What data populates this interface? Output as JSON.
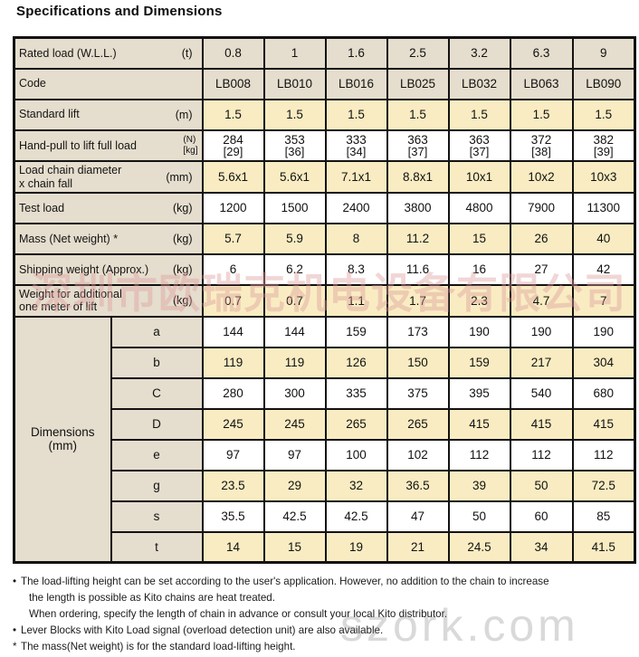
{
  "title": "Specifications and Dimensions",
  "colors": {
    "label_background": "#e5ddcd",
    "highlight_row_background": "#f9ecc2",
    "plain_row_background": "#ffffff",
    "border": "#121212",
    "watermark_chinese": "#de9e9e",
    "watermark_url": "#8c8c8c"
  },
  "table": {
    "spec_rows": [
      {
        "label": "Rated load (W.L.L.)",
        "label2": "",
        "unit": "(t)",
        "unit2": "",
        "shade": "beige",
        "values": [
          "0.8",
          "1",
          "1.6",
          "2.5",
          "3.2",
          "6.3",
          "9"
        ],
        "values2": []
      },
      {
        "label": "Code",
        "label2": "",
        "unit": "",
        "unit2": "",
        "shade": "beige",
        "values": [
          "LB008",
          "LB010",
          "LB016",
          "LB025",
          "LB032",
          "LB063",
          "LB090"
        ],
        "values2": []
      },
      {
        "label": "Standard lift",
        "label2": "",
        "unit": "(m)",
        "unit2": "",
        "shade": "yellow",
        "values": [
          "1.5",
          "1.5",
          "1.5",
          "1.5",
          "1.5",
          "1.5",
          "1.5"
        ],
        "values2": []
      },
      {
        "label": "Hand-pull to lift full load",
        "label2": "",
        "unit": "(N)",
        "unit2": "[kg]",
        "shade": "white",
        "values": [
          "284",
          "353",
          "333",
          "363",
          "363",
          "372",
          "382"
        ],
        "values2": [
          "[29]",
          "[36]",
          "[34]",
          "[37]",
          "[37]",
          "[38]",
          "[39]"
        ]
      },
      {
        "label": "Load chain diameter",
        "label2": "x chain fall",
        "unit": "(mm)",
        "unit2": "",
        "shade": "yellow",
        "values": [
          "5.6x1",
          "5.6x1",
          "7.1x1",
          "8.8x1",
          "10x1",
          "10x2",
          "10x3"
        ],
        "values2": []
      },
      {
        "label": "Test load",
        "label2": "",
        "unit": "(kg)",
        "unit2": "",
        "shade": "white",
        "values": [
          "1200",
          "1500",
          "2400",
          "3800",
          "4800",
          "7900",
          "11300"
        ],
        "values2": []
      },
      {
        "label": "Mass (Net weight) *",
        "label2": "",
        "unit": "(kg)",
        "unit2": "",
        "shade": "yellow",
        "values": [
          "5.7",
          "5.9",
          "8",
          "11.2",
          "15",
          "26",
          "40"
        ],
        "values2": []
      },
      {
        "label": "Shipping weight (Approx.)",
        "label2": "",
        "unit": "(kg)",
        "unit2": "",
        "shade": "white",
        "values": [
          "6",
          "6.2",
          "8.3",
          "11.6",
          "16",
          "27",
          "42"
        ],
        "values2": []
      },
      {
        "label": "Weight for additional",
        "label2": "one meter of lift",
        "unit": "(kg)",
        "unit2": "",
        "shade": "yellow",
        "values": [
          "0.7",
          "0.7",
          "1.1",
          "1.7",
          "2.3",
          "4.7",
          "7"
        ],
        "values2": []
      }
    ],
    "dimensions_label": "Dimensions",
    "dimensions_unit": "(mm)",
    "dimension_rows": [
      {
        "key": "a",
        "shade": "white",
        "values": [
          "144",
          "144",
          "159",
          "173",
          "190",
          "190",
          "190"
        ]
      },
      {
        "key": "b",
        "shade": "yellow",
        "values": [
          "119",
          "119",
          "126",
          "150",
          "159",
          "217",
          "304"
        ]
      },
      {
        "key": "C",
        "shade": "white",
        "values": [
          "280",
          "300",
          "335",
          "375",
          "395",
          "540",
          "680"
        ]
      },
      {
        "key": "D",
        "shade": "yellow",
        "values": [
          "245",
          "245",
          "265",
          "265",
          "415",
          "415",
          "415"
        ]
      },
      {
        "key": "e",
        "shade": "white",
        "values": [
          "97",
          "97",
          "100",
          "102",
          "112",
          "112",
          "112"
        ]
      },
      {
        "key": "g",
        "shade": "yellow",
        "values": [
          "23.5",
          "29",
          "32",
          "36.5",
          "39",
          "50",
          "72.5"
        ]
      },
      {
        "key": "s",
        "shade": "white",
        "values": [
          "35.5",
          "42.5",
          "42.5",
          "47",
          "50",
          "60",
          "85"
        ]
      },
      {
        "key": "t",
        "shade": "yellow",
        "values": [
          "14",
          "15",
          "19",
          "21",
          "24.5",
          "34",
          "41.5"
        ]
      }
    ]
  },
  "notes": [
    {
      "marker": "•",
      "indent": false,
      "text": "The load-lifting height can be set according to the user's application.  However, no addition to the chain to increase"
    },
    {
      "marker": "",
      "indent": true,
      "text": "the length is possible as Kito chains are heat treated."
    },
    {
      "marker": "",
      "indent": true,
      "text": "When ordering, specify the length of chain in advance or consult your local Kito distributor."
    },
    {
      "marker": "•",
      "indent": false,
      "text": "Lever Blocks with Kito Load signal (overload detection unit) are also available."
    },
    {
      "marker": "*",
      "indent": false,
      "text": "The mass(Net weight) is for the standard load-lifting height."
    }
  ],
  "watermarks": {
    "chinese": "深圳市欧瑞克机电设备有限公司",
    "url": "szork.com"
  }
}
